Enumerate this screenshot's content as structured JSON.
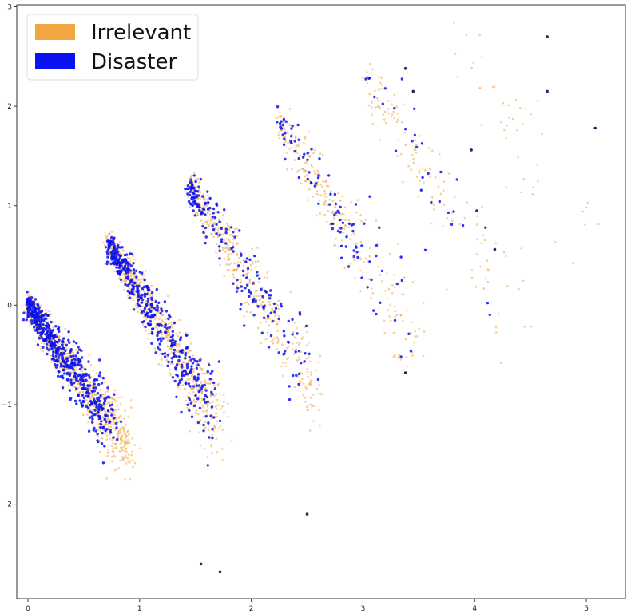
{
  "chart_data": {
    "type": "scatter",
    "title": "",
    "xlabel": "",
    "ylabel": "",
    "xlim": [
      -0.1,
      5.35
    ],
    "ylim": [
      -2.95,
      3.02
    ],
    "xticks": [
      0,
      1,
      2,
      3,
      4,
      5
    ],
    "yticks": [
      -2,
      -1,
      0,
      1,
      2,
      3
    ],
    "grid": false,
    "legend": {
      "placement": "top-left"
    },
    "series": [
      {
        "name": "Irrelevant",
        "color": "#f2a541",
        "clusters": [
          {
            "anchor": [
              0.0,
              0.0
            ],
            "t_range": [
              0,
              1.45
            ],
            "dir": [
              0.62,
              -1.0
            ],
            "spread": [
              0.05,
              0.16
            ],
            "n": 850
          },
          {
            "anchor": [
              0.72,
              0.62
            ],
            "t_range": [
              0,
              1.85
            ],
            "dir": [
              0.55,
              -1.0
            ],
            "spread": [
              0.05,
              0.2
            ],
            "n": 650
          },
          {
            "anchor": [
              1.45,
              1.2
            ],
            "t_range": [
              0,
              2.05
            ],
            "dir": [
              0.55,
              -1.0
            ],
            "spread": [
              0.05,
              0.24
            ],
            "n": 420
          },
          {
            "anchor": [
              2.25,
              1.85
            ],
            "t_range": [
              0,
              2.3
            ],
            "dir": [
              0.55,
              -1.0
            ],
            "spread": [
              0.06,
              0.3
            ],
            "n": 260
          },
          {
            "anchor": [
              3.05,
              2.2
            ],
            "t_range": [
              0,
              2.2
            ],
            "dir": [
              0.6,
              -1.0
            ],
            "spread": [
              0.08,
              0.35
            ],
            "n": 130
          },
          {
            "anchor": [
              3.8,
              2.7
            ],
            "t_range": [
              0,
              2.3
            ],
            "dir": [
              0.6,
              -1.0
            ],
            "spread": [
              0.1,
              0.4
            ],
            "n": 45
          }
        ]
      },
      {
        "name": "Disaster",
        "color": "#0a12f0",
        "clusters": [
          {
            "anchor": [
              0.0,
              0.0
            ],
            "t_range": [
              0,
              1.2
            ],
            "dir": [
              0.62,
              -1.0
            ],
            "spread": [
              0.05,
              0.17
            ],
            "n": 550
          },
          {
            "anchor": [
              0.72,
              0.62
            ],
            "t_range": [
              0,
              1.7
            ],
            "dir": [
              0.55,
              -1.0
            ],
            "spread": [
              0.05,
              0.2
            ],
            "n": 420
          },
          {
            "anchor": [
              1.45,
              1.2
            ],
            "t_range": [
              0,
              1.9
            ],
            "dir": [
              0.55,
              -1.0
            ],
            "spread": [
              0.06,
              0.25
            ],
            "n": 190
          },
          {
            "anchor": [
              2.25,
              1.85
            ],
            "t_range": [
              0,
              2.1
            ],
            "dir": [
              0.55,
              -1.0
            ],
            "spread": [
              0.07,
              0.3
            ],
            "n": 95
          },
          {
            "anchor": [
              3.05,
              2.2
            ],
            "t_range": [
              0,
              2.0
            ],
            "dir": [
              0.6,
              -1.0
            ],
            "spread": [
              0.1,
              0.35
            ],
            "n": 30
          }
        ],
        "outliers": [
          [
            4.65,
            2.7
          ],
          [
            4.65,
            2.15
          ],
          [
            5.08,
            1.78
          ],
          [
            4.18,
            0.56
          ],
          [
            4.02,
            0.95
          ],
          [
            3.97,
            1.56
          ],
          [
            3.38,
            2.38
          ],
          [
            3.45,
            2.15
          ],
          [
            1.55,
            -2.6
          ],
          [
            1.72,
            -2.68
          ],
          [
            2.5,
            -2.1
          ],
          [
            3.38,
            -0.68
          ]
        ]
      }
    ]
  }
}
